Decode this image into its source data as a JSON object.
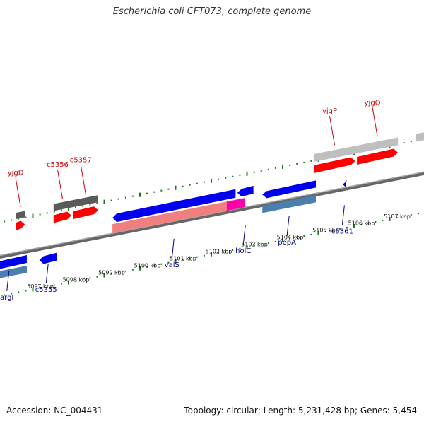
{
  "title": "Escherichia coli CFT073, complete genome",
  "footer": {
    "accession": "Accession: NC_004431",
    "summary": "Topology: circular; Length: 5,231,428 bp; Genes: 5,454"
  },
  "colors": {
    "forward_gene": "#ff0000",
    "forward_rna": "#5a5a5a",
    "forward_region": "#bfbfbf",
    "reverse_gene": "#0000ee",
    "reverse_region": "#4a7fb0",
    "rna_region": "#f08080",
    "hypothetical": "#ff00aa",
    "tick": "#1a7a1a",
    "label_forward": "#cc0000",
    "label_reverse": "#00008b"
  },
  "scale_labels": [
    "5097 kbp",
    "5098 kbp",
    "5099 kbp",
    "5100 kbp",
    "5101 kbp",
    "5102 kbp",
    "5103 kbp",
    "5104 kbp",
    "5105 kbp",
    "5106 kbp",
    "5107 kbp"
  ],
  "genes": [
    {
      "name": "yjgD",
      "strand": "+",
      "start": 5096.6,
      "end": 5096.85
    },
    {
      "name": "c5356",
      "strand": "+",
      "start": 5097.65,
      "end": 5098.15
    },
    {
      "name": "c5357",
      "strand": "+",
      "start": 5098.2,
      "end": 5098.9
    },
    {
      "name": "yjgP",
      "strand": "+",
      "start": 5104.95,
      "end": 5106.1
    },
    {
      "name": "yjgQ",
      "strand": "+",
      "start": 5106.15,
      "end": 5107.3
    },
    {
      "name": "argI",
      "strand": "-",
      "start": 5095.9,
      "end": 5096.9
    },
    {
      "name": "c5355",
      "strand": "-",
      "start": 5097.25,
      "end": 5097.75
    },
    {
      "name": "valS",
      "strand": "-",
      "start": 5099.3,
      "end": 5102.75
    },
    {
      "name": "holC",
      "strand": "-",
      "start": 5102.8,
      "end": 5103.25
    },
    {
      "name": "pepA",
      "strand": "-",
      "start": 5103.5,
      "end": 5105.0
    },
    {
      "name": "c5361",
      "strand": "-",
      "start": 5105.75,
      "end": 5105.85
    }
  ]
}
